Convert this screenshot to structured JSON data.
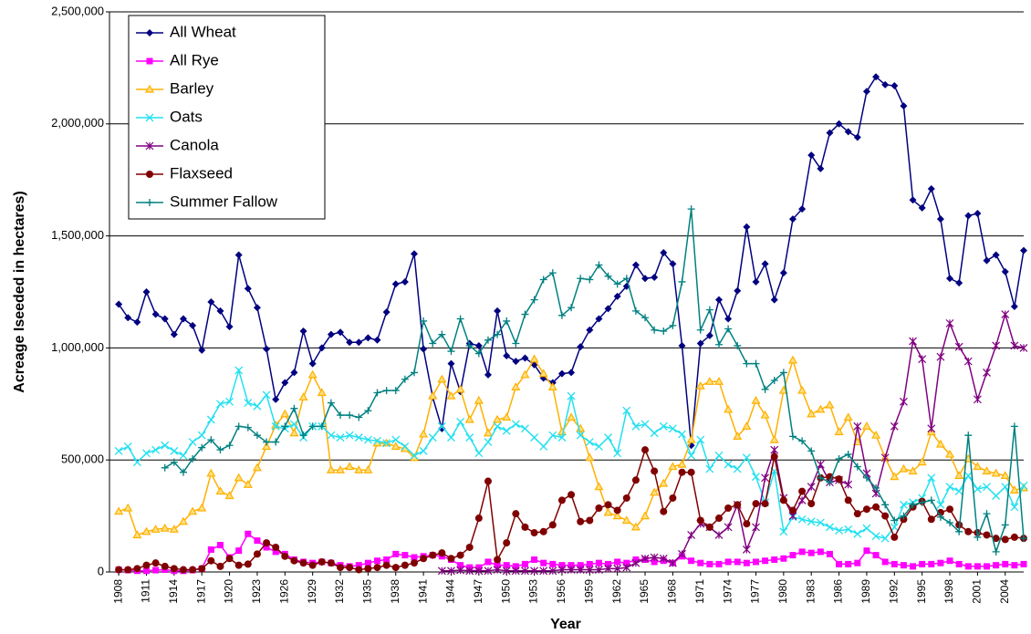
{
  "chart_data": {
    "type": "line",
    "y_label": "Acreage Iseeded in hectares)",
    "x_label": "Year",
    "x": [
      1908,
      1909,
      1910,
      1911,
      1912,
      1913,
      1914,
      1915,
      1916,
      1917,
      1918,
      1919,
      1920,
      1921,
      1922,
      1923,
      1924,
      1925,
      1926,
      1927,
      1928,
      1929,
      1930,
      1931,
      1932,
      1933,
      1934,
      1935,
      1936,
      1937,
      1938,
      1939,
      1940,
      1941,
      1942,
      1943,
      1944,
      1945,
      1946,
      1947,
      1948,
      1949,
      1950,
      1951,
      1952,
      1953,
      1954,
      1955,
      1956,
      1957,
      1958,
      1959,
      1960,
      1961,
      1962,
      1963,
      1964,
      1965,
      1966,
      1967,
      1968,
      1969,
      1970,
      1971,
      1972,
      1973,
      1974,
      1975,
      1976,
      1977,
      1978,
      1979,
      1980,
      1981,
      1982,
      1983,
      1984,
      1985,
      1986,
      1987,
      1988,
      1989,
      1990,
      1991,
      1992,
      1993,
      1994,
      1995,
      1996,
      1997,
      1998,
      1999,
      2000,
      2001,
      2002,
      2003,
      2004,
      2005,
      2006
    ],
    "xlim": [
      1907,
      2006
    ],
    "xticks": [
      1908,
      1911,
      1914,
      1917,
      1920,
      1923,
      1926,
      1929,
      1932,
      1935,
      1938,
      1941,
      1944,
      1947,
      1950,
      1953,
      1956,
      1959,
      1962,
      1965,
      1968,
      1971,
      1974,
      1977,
      1980,
      1983,
      1986,
      1989,
      1992,
      1995,
      1998,
      2001,
      2004
    ],
    "ylim": [
      0,
      2500000
    ],
    "yticks": [
      0,
      {
        "value": 500000,
        "label": "500,000"
      },
      {
        "value": 1000000,
        "label": "1,000,000"
      },
      {
        "value": 1500000,
        "label": "1,500,000"
      },
      {
        "value": 2000000,
        "label": "2,000,000"
      },
      {
        "value": 2500000,
        "label": "2,500,000"
      }
    ],
    "grid": true,
    "legend": "upper left",
    "series": [
      {
        "name": "All Wheat",
        "color": "#000080",
        "marker": "diamond",
        "values": [
          1195000,
          1135000,
          1115000,
          1250000,
          1150000,
          1130000,
          1060000,
          1130000,
          1100000,
          990000,
          1205000,
          1165000,
          1095000,
          1415000,
          1265000,
          1180000,
          995000,
          770000,
          845000,
          890000,
          1075000,
          930000,
          1000000,
          1060000,
          1070000,
          1025000,
          1025000,
          1045000,
          1035000,
          1160000,
          1285000,
          1295000,
          1420000,
          995000,
          780000,
          640000,
          930000,
          805000,
          1020000,
          1010000,
          880000,
          1165000,
          965000,
          940000,
          955000,
          925000,
          865000,
          845000,
          885000,
          890000,
          1005000,
          1080000,
          1130000,
          1175000,
          1230000,
          1275000,
          1370000,
          1310000,
          1315000,
          1425000,
          1375000,
          1010000,
          565000,
          1020000,
          1055000,
          1215000,
          1130000,
          1255000,
          1540000,
          1295000,
          1375000,
          1215000,
          1335000,
          1575000,
          1620000,
          1860000,
          1800000,
          1960000,
          2000000,
          1965000,
          1940000,
          2145000,
          2210000,
          2175000,
          2170000,
          2080000,
          1660000,
          1625000,
          1710000,
          1575000,
          1310000,
          1290000,
          1590000,
          1600000,
          1390000,
          1415000,
          1340000,
          1185000,
          1435000
        ]
      },
      {
        "name": "All Rye",
        "color": "#ff00ff",
        "marker": "square",
        "values": [
          10000,
          8000,
          5000,
          5000,
          8000,
          10000,
          5000,
          5000,
          8000,
          15000,
          100000,
          120000,
          65000,
          95000,
          170000,
          140000,
          110000,
          90000,
          80000,
          55000,
          45000,
          40000,
          45000,
          40000,
          30000,
          25000,
          30000,
          40000,
          50000,
          55000,
          80000,
          75000,
          65000,
          70000,
          75000,
          70000,
          55000,
          30000,
          20000,
          20000,
          45000,
          30000,
          30000,
          25000,
          35000,
          55000,
          40000,
          35000,
          30000,
          30000,
          30000,
          35000,
          40000,
          35000,
          45000,
          40000,
          55000,
          55000,
          45000,
          50000,
          40000,
          70000,
          50000,
          40000,
          35000,
          35000,
          45000,
          45000,
          40000,
          45000,
          50000,
          55000,
          60000,
          75000,
          90000,
          85000,
          90000,
          80000,
          35000,
          35000,
          40000,
          95000,
          75000,
          45000,
          35000,
          30000,
          25000,
          35000,
          35000,
          40000,
          50000,
          35000,
          25000,
          25000,
          25000,
          30000,
          35000,
          30000,
          35000
        ]
      },
      {
        "name": "Barley",
        "color": "#ffb000",
        "marker": "triangle",
        "values": [
          270000,
          285000,
          165000,
          180000,
          190000,
          195000,
          190000,
          225000,
          270000,
          285000,
          440000,
          360000,
          340000,
          420000,
          390000,
          465000,
          560000,
          655000,
          705000,
          620000,
          780000,
          880000,
          800000,
          455000,
          455000,
          470000,
          455000,
          455000,
          575000,
          575000,
          560000,
          550000,
          510000,
          615000,
          785000,
          860000,
          785000,
          815000,
          680000,
          765000,
          620000,
          680000,
          690000,
          825000,
          880000,
          950000,
          885000,
          825000,
          625000,
          690000,
          640000,
          510000,
          380000,
          265000,
          250000,
          230000,
          200000,
          250000,
          355000,
          395000,
          470000,
          480000,
          590000,
          830000,
          850000,
          850000,
          725000,
          605000,
          650000,
          765000,
          700000,
          590000,
          810000,
          945000,
          810000,
          705000,
          725000,
          745000,
          625000,
          690000,
          580000,
          650000,
          610000,
          510000,
          425000,
          460000,
          450000,
          490000,
          625000,
          570000,
          525000,
          430000,
          505000,
          470000,
          450000,
          440000,
          430000,
          365000,
          375000
        ]
      },
      {
        "name": "Oats",
        "color": "#22e0f0",
        "marker": "x",
        "values": [
          540000,
          560000,
          490000,
          530000,
          545000,
          565000,
          540000,
          520000,
          580000,
          610000,
          680000,
          750000,
          760000,
          900000,
          755000,
          740000,
          790000,
          650000,
          640000,
          660000,
          600000,
          650000,
          650000,
          610000,
          600000,
          610000,
          600000,
          590000,
          585000,
          575000,
          590000,
          560000,
          520000,
          540000,
          600000,
          650000,
          600000,
          670000,
          600000,
          530000,
          580000,
          650000,
          630000,
          660000,
          640000,
          600000,
          560000,
          610000,
          600000,
          785000,
          610000,
          580000,
          560000,
          600000,
          530000,
          720000,
          650000,
          660000,
          620000,
          650000,
          640000,
          615000,
          520000,
          590000,
          460000,
          520000,
          480000,
          460000,
          510000,
          425000,
          310000,
          450000,
          180000,
          245000,
          235000,
          225000,
          220000,
          200000,
          185000,
          190000,
          170000,
          195000,
          160000,
          150000,
          200000,
          300000,
          310000,
          330000,
          420000,
          300000,
          380000,
          360000,
          430000,
          370000,
          380000,
          340000,
          380000,
          290000,
          385000
        ]
      },
      {
        "name": "Canola",
        "color": "#800080",
        "marker": "asterisk",
        "values": [
          null,
          null,
          null,
          null,
          null,
          null,
          null,
          null,
          null,
          null,
          null,
          null,
          null,
          null,
          null,
          null,
          null,
          null,
          null,
          null,
          null,
          null,
          null,
          null,
          null,
          null,
          null,
          null,
          null,
          null,
          null,
          null,
          null,
          null,
          null,
          5000,
          5000,
          8000,
          5000,
          5000,
          5000,
          10000,
          5000,
          5000,
          5000,
          5000,
          5000,
          5000,
          10000,
          10000,
          10000,
          10000,
          10000,
          15000,
          15000,
          20000,
          40000,
          60000,
          65000,
          60000,
          40000,
          80000,
          165000,
          215000,
          200000,
          165000,
          200000,
          300000,
          100000,
          200000,
          420000,
          545000,
          330000,
          250000,
          320000,
          380000,
          480000,
          400000,
          410000,
          390000,
          650000,
          440000,
          350000,
          510000,
          650000,
          760000,
          1030000,
          950000,
          640000,
          960000,
          1110000,
          1005000,
          940000,
          770000,
          890000,
          1010000,
          1150000,
          1010000,
          1000000
        ]
      },
      {
        "name": "Flaxseed",
        "color": "#800000",
        "marker": "circle",
        "values": [
          10000,
          10000,
          15000,
          30000,
          40000,
          25000,
          15000,
          10000,
          10000,
          15000,
          50000,
          25000,
          60000,
          30000,
          35000,
          80000,
          130000,
          110000,
          70000,
          50000,
          40000,
          30000,
          45000,
          40000,
          20000,
          20000,
          10000,
          15000,
          20000,
          30000,
          20000,
          30000,
          40000,
          60000,
          75000,
          85000,
          60000,
          75000,
          110000,
          240000,
          405000,
          55000,
          130000,
          260000,
          200000,
          175000,
          180000,
          210000,
          320000,
          345000,
          225000,
          230000,
          285000,
          300000,
          275000,
          330000,
          410000,
          545000,
          450000,
          270000,
          330000,
          445000,
          445000,
          230000,
          200000,
          240000,
          285000,
          300000,
          215000,
          305000,
          305000,
          515000,
          320000,
          275000,
          360000,
          305000,
          420000,
          425000,
          415000,
          320000,
          260000,
          280000,
          290000,
          250000,
          155000,
          235000,
          290000,
          315000,
          235000,
          265000,
          280000,
          210000,
          180000,
          175000,
          165000,
          150000,
          145000,
          155000,
          150000
        ]
      },
      {
        "name": "Summer Fallow",
        "color": "#008080",
        "marker": "plus",
        "values": [
          null,
          null,
          null,
          null,
          null,
          465000,
          490000,
          445000,
          505000,
          555000,
          590000,
          545000,
          565000,
          650000,
          645000,
          610000,
          580000,
          580000,
          650000,
          730000,
          610000,
          650000,
          650000,
          755000,
          700000,
          700000,
          690000,
          720000,
          800000,
          810000,
          810000,
          860000,
          890000,
          1120000,
          1020000,
          1060000,
          985000,
          1130000,
          1010000,
          975000,
          1035000,
          1060000,
          1120000,
          1020000,
          1150000,
          1215000,
          1305000,
          1335000,
          1145000,
          1180000,
          1310000,
          1305000,
          1370000,
          1320000,
          1285000,
          1310000,
          1165000,
          1135000,
          1080000,
          1075000,
          1100000,
          1295000,
          1620000,
          1080000,
          1170000,
          1015000,
          1085000,
          1010000,
          930000,
          930000,
          815000,
          855000,
          890000,
          605000,
          585000,
          540000,
          420000,
          400000,
          505000,
          525000,
          470000,
          420000,
          375000,
          300000,
          230000,
          250000,
          300000,
          310000,
          320000,
          245000,
          220000,
          180000,
          610000,
          155000,
          260000,
          90000,
          210000,
          650000,
          150000
        ]
      }
    ]
  }
}
